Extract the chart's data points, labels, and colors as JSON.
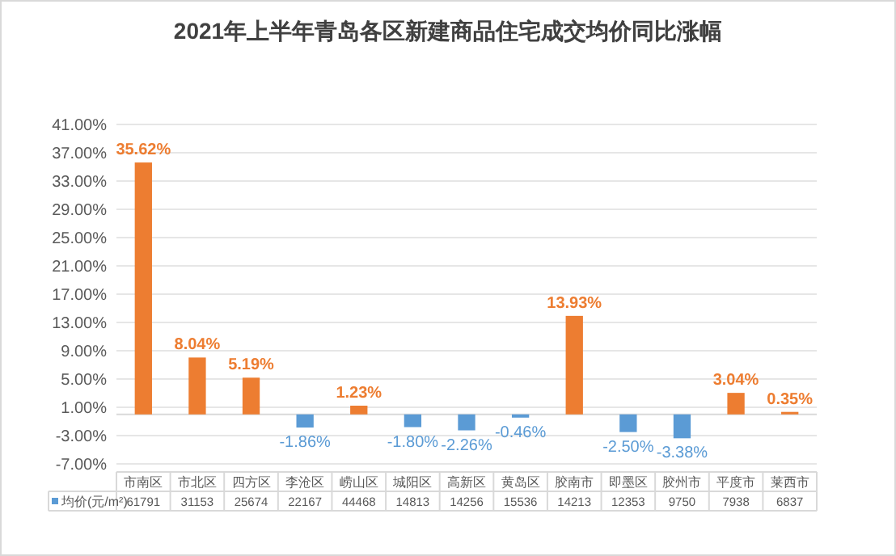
{
  "chart_data": {
    "type": "bar",
    "title": "2021年上半年青岛各区新建商品住宅成交均价同比涨幅",
    "categories": [
      "市南区",
      "市北区",
      "四方区",
      "李沧区",
      "崂山区",
      "城阳区",
      "高新区",
      "黄岛区",
      "胶南市",
      "即墨区",
      "胶州市",
      "平度市",
      "莱西市"
    ],
    "series": [
      {
        "values": [
          35.62,
          8.04,
          5.19,
          -1.86,
          1.23,
          -1.8,
          -2.26,
          -0.46,
          13.93,
          -2.5,
          -3.38,
          3.04,
          0.35
        ],
        "colors": [
          "#ed7d31",
          "#ed7d31",
          "#ed7d31",
          "#5b9bd5",
          "#ed7d31",
          "#5b9bd5",
          "#5b9bd5",
          "#5b9bd5",
          "#ed7d31",
          "#5b9bd5",
          "#5b9bd5",
          "#ed7d31",
          "#ed7d31"
        ],
        "value_labels": [
          "35.62%",
          "8.04%",
          "5.19%",
          "-1.86%",
          "1.23%",
          "-1.80%",
          "-2.26%",
          "-0.46%",
          "13.93%",
          "-2.50%",
          "-3.38%",
          "3.04%",
          "0.35%"
        ]
      },
      {
        "type": "other",
        "name": "均价(元/m²)",
        "color": "#5b9bd5",
        "values": [
          null,
          null,
          null,
          null,
          null,
          null,
          null,
          null,
          null,
          null,
          null,
          null,
          null
        ],
        "value_labels": [
          "61791",
          "31153",
          "25674",
          "22167",
          "44468",
          "14813",
          "14256",
          "15536",
          "14213",
          "12353",
          "9750",
          "7938",
          "6837"
        ]
      }
    ],
    "ylim": [
      -7,
      41
    ],
    "yticks": [
      {
        "value": -7,
        "label": "-7.00%"
      },
      {
        "value": -3,
        "label": "-3.00%"
      },
      {
        "value": 1,
        "label": "1.00%"
      },
      {
        "value": 5,
        "label": "5.00%"
      },
      {
        "value": 9,
        "label": "9.00%"
      },
      {
        "value": 13,
        "label": "13.00%"
      },
      {
        "value": 17,
        "label": "17.00%"
      },
      {
        "value": 21,
        "label": "21.00%"
      },
      {
        "value": 25,
        "label": "25.00%"
      },
      {
        "value": 29,
        "label": "29.00%"
      },
      {
        "value": 33,
        "label": "33.00%"
      },
      {
        "value": 37,
        "label": "37.00%"
      },
      {
        "value": 41,
        "label": "41.00%"
      }
    ],
    "grid": "y",
    "legend": "bottom"
  }
}
